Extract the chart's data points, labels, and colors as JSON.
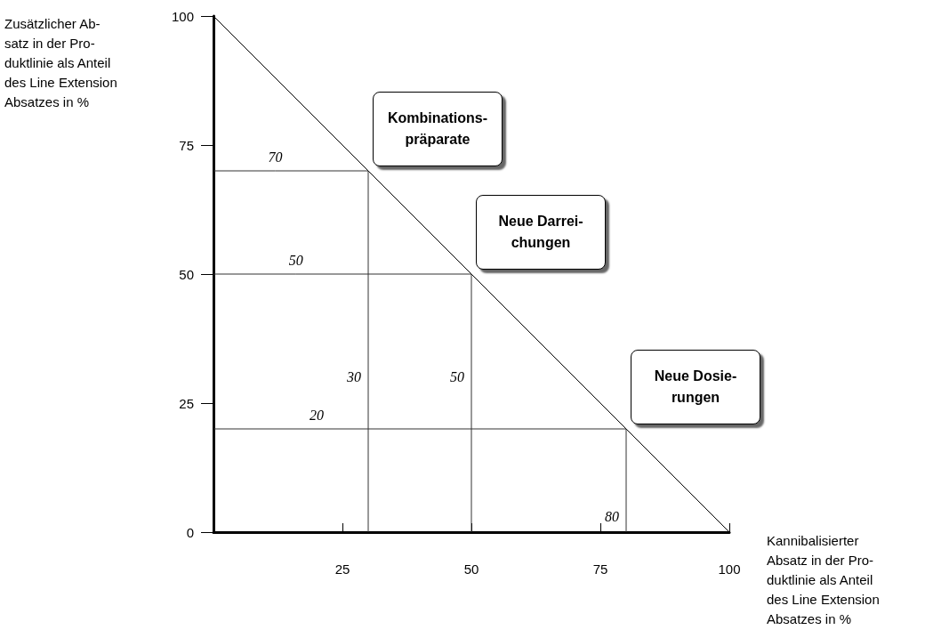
{
  "chart_data": {
    "type": "line",
    "xlabel": "Kannibalisierter\nAbsatz in der Pro-\nduktlinie als Anteil\ndes Line Extension\nAbsatzes in %",
    "ylabel": "Zusätzlicher Ab-\nsatz in der Pro-\nduktlinie als Anteil\ndes Line Extension\nAbsatzes in %",
    "series": [
      {
        "x": [
          0,
          100
        ],
        "values": [
          100,
          0
        ],
        "color": "#000000"
      },
      {
        "name": "Kombinations-\npräparate",
        "x": [
          0,
          12,
          30,
          30
        ],
        "values": [
          70,
          70,
          70,
          0
        ],
        "value_labels": [
          null,
          "70",
          null,
          null
        ],
        "color": "#333333"
      },
      {
        "name": "Neue Darrei-\nchungen",
        "x": [
          0,
          16,
          50,
          50
        ],
        "values": [
          50,
          50,
          50,
          0
        ],
        "value_labels": [
          null,
          "50",
          null,
          null
        ],
        "color": "#333333"
      },
      {
        "name": "Neue Dosie-\nrungen",
        "x": [
          0,
          20,
          80,
          80
        ],
        "values": [
          20,
          20,
          20,
          0
        ],
        "value_labels": [
          null,
          "20",
          null,
          null
        ],
        "color": "#333333"
      }
    ],
    "annotations": [
      {
        "text": "30",
        "x": 30,
        "y": 30
      },
      {
        "text": "50",
        "x": 50,
        "y": 30
      },
      {
        "text": "80",
        "x": 80,
        "y": 3
      }
    ],
    "xlim": [
      0,
      100
    ],
    "xticks": [
      25,
      50,
      75,
      100
    ],
    "ylim": [
      0,
      100
    ],
    "yticks": [
      0,
      25,
      50,
      75,
      100
    ],
    "grid": false,
    "marker": "none"
  }
}
